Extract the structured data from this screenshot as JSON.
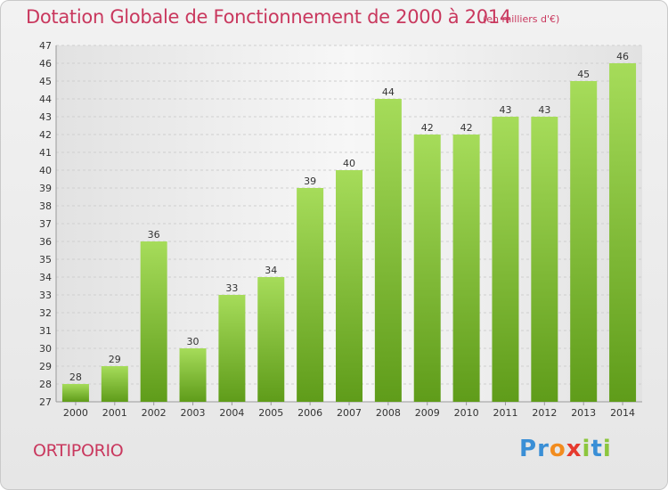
{
  "title": "Dotation Globale de Fonctionnement de 2000 à 2014",
  "subtitle": "(en milliers d'€)",
  "commune": "ORTIPORIO",
  "logo": {
    "letters": [
      "P",
      "r",
      "o",
      "x",
      "i",
      "t",
      "i"
    ],
    "colors": [
      "#3a8fd6",
      "#3a8fd6",
      "#f28c1e",
      "#e63a2e",
      "#8cc63e",
      "#3a8fd6",
      "#8cc63e"
    ]
  },
  "colors": {
    "title": "#c9385e",
    "bar_light": "#a6dc5a",
    "bar_dark": "#5f9c1a",
    "grid": "#cfcfcf"
  },
  "chart_data": {
    "type": "bar",
    "categories": [
      "2000",
      "2001",
      "2002",
      "2003",
      "2004",
      "2005",
      "2006",
      "2007",
      "2008",
      "2009",
      "2010",
      "2011",
      "2012",
      "2013",
      "2014"
    ],
    "values": [
      28,
      29,
      36,
      30,
      33,
      34,
      39,
      40,
      44,
      42,
      42,
      43,
      43,
      45,
      46
    ],
    "ylim": [
      27,
      47
    ],
    "yticks": [
      27,
      28,
      29,
      30,
      31,
      32,
      33,
      34,
      35,
      36,
      37,
      38,
      39,
      40,
      41,
      42,
      43,
      44,
      45,
      46,
      47
    ],
    "grid": true,
    "data_labels": true
  }
}
